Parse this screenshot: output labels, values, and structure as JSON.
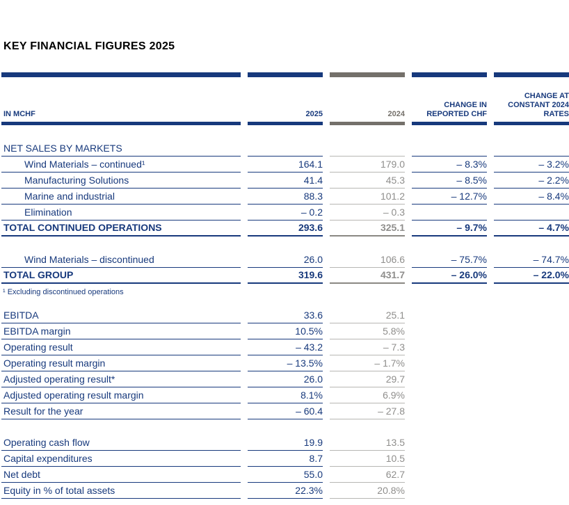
{
  "page": {
    "title": "KEY FINANCIAL FIGURES 2025"
  },
  "colors": {
    "navy": "#17397C",
    "warm_gray_bar": "#74706A",
    "gray_value_text": "#8F8E8C"
  },
  "table": {
    "unit_label": "IN MCHF",
    "columns": [
      "2025",
      "2024",
      "CHANGE IN REPORTED CHF",
      "CHANGE AT CONSTANT 2024 RATES"
    ],
    "rows": [
      {
        "type": "section",
        "label": "NET SALES BY MARKETS",
        "values": [
          "",
          "",
          "",
          ""
        ]
      },
      {
        "type": "data",
        "indent": true,
        "label": "Wind Materials – continued¹",
        "values": [
          "164.1",
          "179.0",
          "– 8.3%",
          "– 3.2%"
        ]
      },
      {
        "type": "data",
        "indent": true,
        "label": "Manufacturing Solutions",
        "values": [
          "41.4",
          "45.3",
          "– 8.5%",
          "– 2.2%"
        ]
      },
      {
        "type": "data",
        "indent": true,
        "label": "Marine and industrial",
        "values": [
          "88.3",
          "101.2",
          "– 12.7%",
          "– 8.4%"
        ]
      },
      {
        "type": "data",
        "indent": true,
        "label": "Elimination",
        "values": [
          "– 0.2",
          "– 0.3",
          "",
          ""
        ]
      },
      {
        "type": "total",
        "label": "TOTAL CONTINUED OPERATIONS",
        "values": [
          "293.6",
          "325.1",
          "– 9.7%",
          "– 4.7%"
        ]
      },
      {
        "type": "spacer"
      },
      {
        "type": "data",
        "indent": true,
        "label": "Wind Materials – discontinued",
        "values": [
          "26.0",
          "106.6",
          "– 75.7%",
          "– 74.7%"
        ]
      },
      {
        "type": "total",
        "label": "TOTAL GROUP",
        "values": [
          "319.6",
          "431.7",
          "– 26.0%",
          "– 22.0%"
        ]
      },
      {
        "type": "footnote",
        "label": "¹ Excluding discontinued operations"
      },
      {
        "type": "data",
        "label": "EBITDA",
        "values": [
          "33.6",
          "25.1"
        ]
      },
      {
        "type": "data",
        "label": "EBITDA margin",
        "values": [
          "10.5%",
          "5.8%"
        ]
      },
      {
        "type": "data",
        "label": "Operating result",
        "values": [
          "– 43.2",
          "– 7.3"
        ]
      },
      {
        "type": "data",
        "label": "Operating result margin",
        "values": [
          "– 13.5%",
          "– 1.7%"
        ]
      },
      {
        "type": "data",
        "label": "Adjusted operating result*",
        "values": [
          "26.0",
          "29.7"
        ]
      },
      {
        "type": "data",
        "label": "Adjusted operating result margin",
        "values": [
          "8.1%",
          "6.9%"
        ]
      },
      {
        "type": "data",
        "label": "Result for the year",
        "values": [
          "– 60.4",
          "– 27.8"
        ]
      },
      {
        "type": "spacer"
      },
      {
        "type": "data",
        "label": "Operating cash flow",
        "values": [
          "19.9",
          "13.5"
        ]
      },
      {
        "type": "data",
        "label": "Capital expenditures",
        "values": [
          "8.7",
          "10.5"
        ]
      },
      {
        "type": "data",
        "label": "Net debt",
        "values": [
          "55.0",
          "62.7"
        ]
      },
      {
        "type": "data",
        "label": "Equity in % of total assets",
        "values": [
          "22.3%",
          "20.8%"
        ]
      }
    ]
  }
}
